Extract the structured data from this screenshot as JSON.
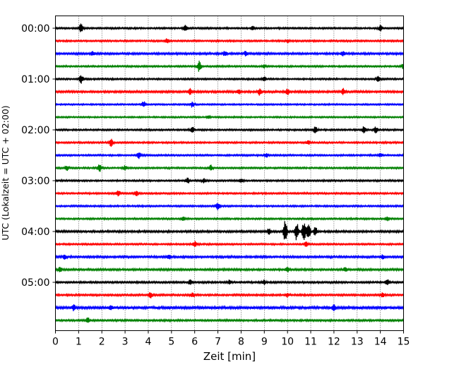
{
  "chart_data": {
    "type": "line",
    "title": "",
    "xlabel": "Zeit  [min]",
    "ylabel": "UTC (Lokalzeit = UTC + 02:00)",
    "xlim": [
      0,
      15
    ],
    "x_ticks": [
      "0",
      "1",
      "2",
      "3",
      "4",
      "5",
      "6",
      "7",
      "8",
      "9",
      "10",
      "11",
      "12",
      "13",
      "14",
      "15"
    ],
    "y_ticks": [
      "00:00",
      "01:00",
      "02:00",
      "03:00",
      "04:00",
      "05:00"
    ],
    "grid": "vertical dotted",
    "trace_interval_min": 15,
    "trace_colors": [
      "#000000",
      "#ff0000",
      "#0000ff",
      "#008000"
    ],
    "traces": [
      {
        "start": "00:00",
        "color": "#000000",
        "amplitude": 1.0,
        "events": [
          {
            "t": 1.1,
            "amp": 6
          },
          {
            "t": 5.6,
            "amp": 5
          },
          {
            "t": 8.5,
            "amp": 3
          },
          {
            "t": 14.0,
            "amp": 4
          }
        ]
      },
      {
        "start": "00:15",
        "color": "#ff0000",
        "amplitude": 1.0,
        "events": [
          {
            "t": 4.8,
            "amp": 3
          },
          {
            "t": 10.0,
            "amp": 2
          }
        ]
      },
      {
        "start": "00:30",
        "color": "#0000ff",
        "amplitude": 1.2,
        "events": [
          {
            "t": 1.6,
            "amp": 3
          },
          {
            "t": 7.3,
            "amp": 3
          },
          {
            "t": 8.2,
            "amp": 3
          },
          {
            "t": 12.4,
            "amp": 3
          }
        ]
      },
      {
        "start": "00:45",
        "color": "#008000",
        "amplitude": 1.0,
        "events": [
          {
            "t": 6.2,
            "amp": 8
          },
          {
            "t": 9.0,
            "amp": 2
          },
          {
            "t": 15.0,
            "amp": 4
          }
        ]
      },
      {
        "start": "01:00",
        "color": "#000000",
        "amplitude": 1.0,
        "events": [
          {
            "t": 1.1,
            "amp": 6
          },
          {
            "t": 9.0,
            "amp": 3
          },
          {
            "t": 13.9,
            "amp": 5
          }
        ]
      },
      {
        "start": "01:15",
        "color": "#ff0000",
        "amplitude": 1.2,
        "events": [
          {
            "t": 5.8,
            "amp": 4
          },
          {
            "t": 7.9,
            "amp": 3
          },
          {
            "t": 8.8,
            "amp": 5
          },
          {
            "t": 10.0,
            "amp": 4
          },
          {
            "t": 12.4,
            "amp": 4
          }
        ]
      },
      {
        "start": "01:30",
        "color": "#0000ff",
        "amplitude": 0.9,
        "events": [
          {
            "t": 3.8,
            "amp": 4
          },
          {
            "t": 5.9,
            "amp": 4
          }
        ]
      },
      {
        "start": "01:45",
        "color": "#008000",
        "amplitude": 0.9,
        "events": [
          {
            "t": 6.6,
            "amp": 2
          }
        ]
      },
      {
        "start": "02:00",
        "color": "#000000",
        "amplitude": 1.0,
        "events": [
          {
            "t": 5.9,
            "amp": 4
          },
          {
            "t": 11.2,
            "amp": 5
          },
          {
            "t": 13.3,
            "amp": 5
          },
          {
            "t": 13.8,
            "amp": 4
          }
        ]
      },
      {
        "start": "02:15",
        "color": "#ff0000",
        "amplitude": 1.0,
        "events": [
          {
            "t": 2.4,
            "amp": 6
          },
          {
            "t": 10.9,
            "amp": 3
          }
        ]
      },
      {
        "start": "02:30",
        "color": "#0000ff",
        "amplitude": 1.0,
        "events": [
          {
            "t": 3.6,
            "amp": 5
          },
          {
            "t": 9.1,
            "amp": 3
          },
          {
            "t": 14.0,
            "amp": 3
          }
        ]
      },
      {
        "start": "02:45",
        "color": "#008000",
        "amplitude": 1.0,
        "events": [
          {
            "t": 0.5,
            "amp": 3
          },
          {
            "t": 1.9,
            "amp": 5
          },
          {
            "t": 3.0,
            "amp": 3
          },
          {
            "t": 6.7,
            "amp": 4
          }
        ]
      },
      {
        "start": "03:00",
        "color": "#000000",
        "amplitude": 1.0,
        "events": [
          {
            "t": 5.7,
            "amp": 4
          },
          {
            "t": 6.4,
            "amp": 3
          },
          {
            "t": 8.0,
            "amp": 3
          }
        ]
      },
      {
        "start": "03:15",
        "color": "#ff0000",
        "amplitude": 1.0,
        "events": [
          {
            "t": 2.7,
            "amp": 4
          },
          {
            "t": 3.5,
            "amp": 4
          }
        ]
      },
      {
        "start": "03:30",
        "color": "#0000ff",
        "amplitude": 1.0,
        "events": [
          {
            "t": 7.0,
            "amp": 5
          }
        ]
      },
      {
        "start": "03:45",
        "color": "#008000",
        "amplitude": 1.0,
        "events": [
          {
            "t": 5.5,
            "amp": 3
          },
          {
            "t": 14.3,
            "amp": 3
          }
        ]
      },
      {
        "start": "04:00",
        "color": "#000000",
        "amplitude": 1.2,
        "events": [
          {
            "t": 9.2,
            "amp": 4
          },
          {
            "t": 9.9,
            "amp": 15
          },
          {
            "t": 10.4,
            "amp": 13
          },
          {
            "t": 10.7,
            "amp": 14
          },
          {
            "t": 10.9,
            "amp": 12
          },
          {
            "t": 11.2,
            "amp": 6
          }
        ]
      },
      {
        "start": "04:15",
        "color": "#ff0000",
        "amplitude": 1.0,
        "events": [
          {
            "t": 6.0,
            "amp": 4
          },
          {
            "t": 10.8,
            "amp": 3
          }
        ]
      },
      {
        "start": "04:30",
        "color": "#0000ff",
        "amplitude": 1.2,
        "events": [
          {
            "t": 0.4,
            "amp": 3
          },
          {
            "t": 4.9,
            "amp": 3
          },
          {
            "t": 14.1,
            "amp": 3
          }
        ]
      },
      {
        "start": "04:45",
        "color": "#008000",
        "amplitude": 1.2,
        "events": [
          {
            "t": 0.2,
            "amp": 4
          },
          {
            "t": 10.0,
            "amp": 3
          },
          {
            "t": 12.5,
            "amp": 3
          }
        ]
      },
      {
        "start": "05:00",
        "color": "#000000",
        "amplitude": 1.1,
        "events": [
          {
            "t": 5.8,
            "amp": 3
          },
          {
            "t": 7.5,
            "amp": 3
          },
          {
            "t": 9.0,
            "amp": 3
          },
          {
            "t": 14.3,
            "amp": 4
          }
        ]
      },
      {
        "start": "05:15",
        "color": "#ff0000",
        "amplitude": 1.1,
        "events": [
          {
            "t": 4.1,
            "amp": 4
          },
          {
            "t": 5.9,
            "amp": 3
          },
          {
            "t": 10.0,
            "amp": 3
          },
          {
            "t": 14.1,
            "amp": 3
          }
        ]
      },
      {
        "start": "05:30",
        "color": "#0000ff",
        "amplitude": 1.6,
        "events": [
          {
            "t": 0.8,
            "amp": 4
          },
          {
            "t": 2.4,
            "amp": 3
          },
          {
            "t": 12.0,
            "amp": 4
          }
        ]
      },
      {
        "start": "05:45",
        "color": "#008000",
        "amplitude": 1.1,
        "events": [
          {
            "t": 1.4,
            "amp": 4
          }
        ]
      }
    ]
  }
}
